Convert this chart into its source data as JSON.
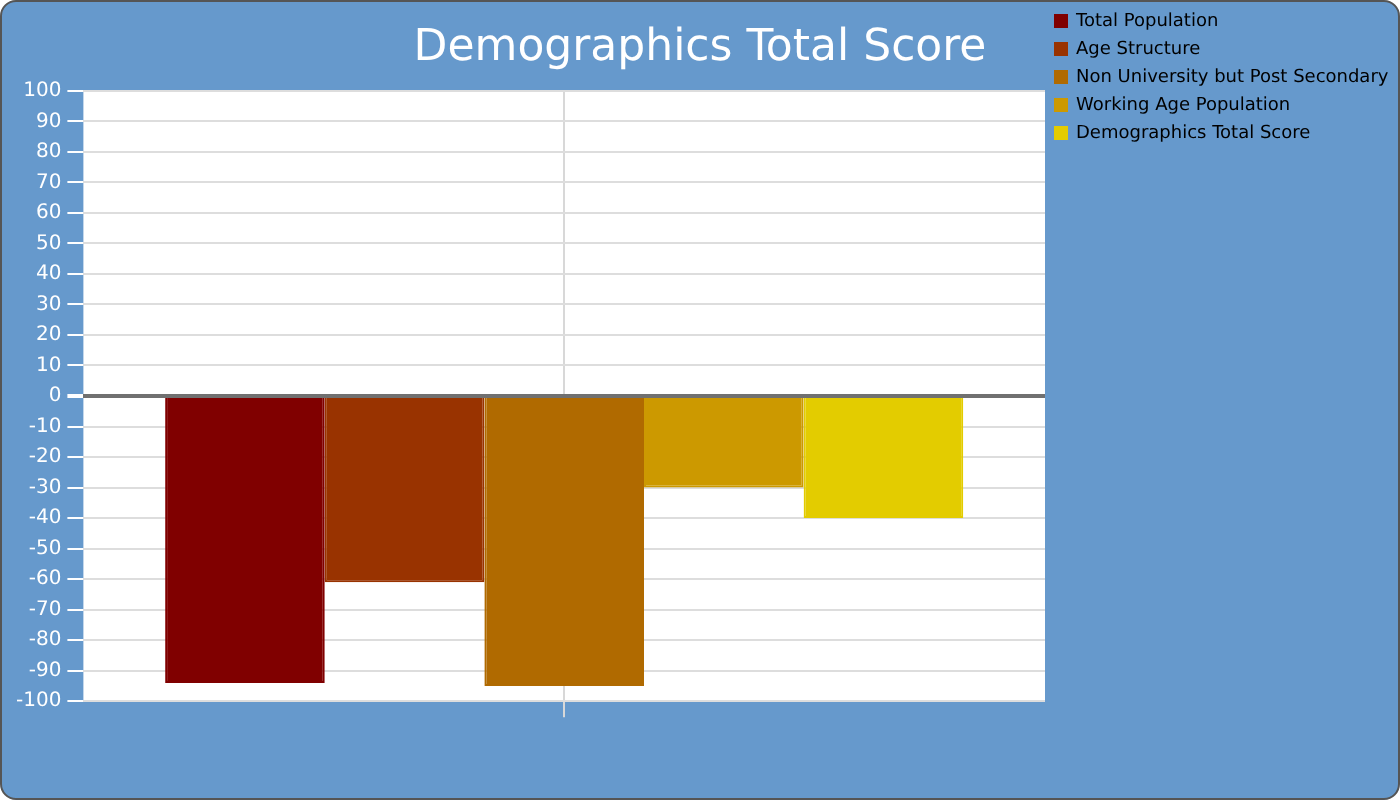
{
  "chart_data": {
    "type": "bar",
    "title": "Demographics Total Score",
    "categories": [
      null
    ],
    "series": [
      {
        "name": "Total Population",
        "color": "#800000",
        "values": [
          -94
        ]
      },
      {
        "name": "Age Structure",
        "color": "#993300",
        "values": [
          -61
        ]
      },
      {
        "name": "Non University but Post Secondary",
        "color": "#b06a00",
        "values": [
          -95
        ]
      },
      {
        "name": "Working Age Population",
        "color": "#cc9900",
        "values": [
          -30
        ]
      },
      {
        "name": "Demographics Total Score",
        "color": "#e3cc00",
        "values": [
          -40
        ]
      }
    ],
    "ylim": [
      -100,
      100
    ],
    "yticks": [
      -100,
      -90,
      -80,
      -70,
      -60,
      -50,
      -40,
      -30,
      -20,
      -10,
      0,
      10,
      20,
      30,
      40,
      50,
      60,
      70,
      80,
      90,
      100
    ],
    "grid": true,
    "legend": "right"
  }
}
